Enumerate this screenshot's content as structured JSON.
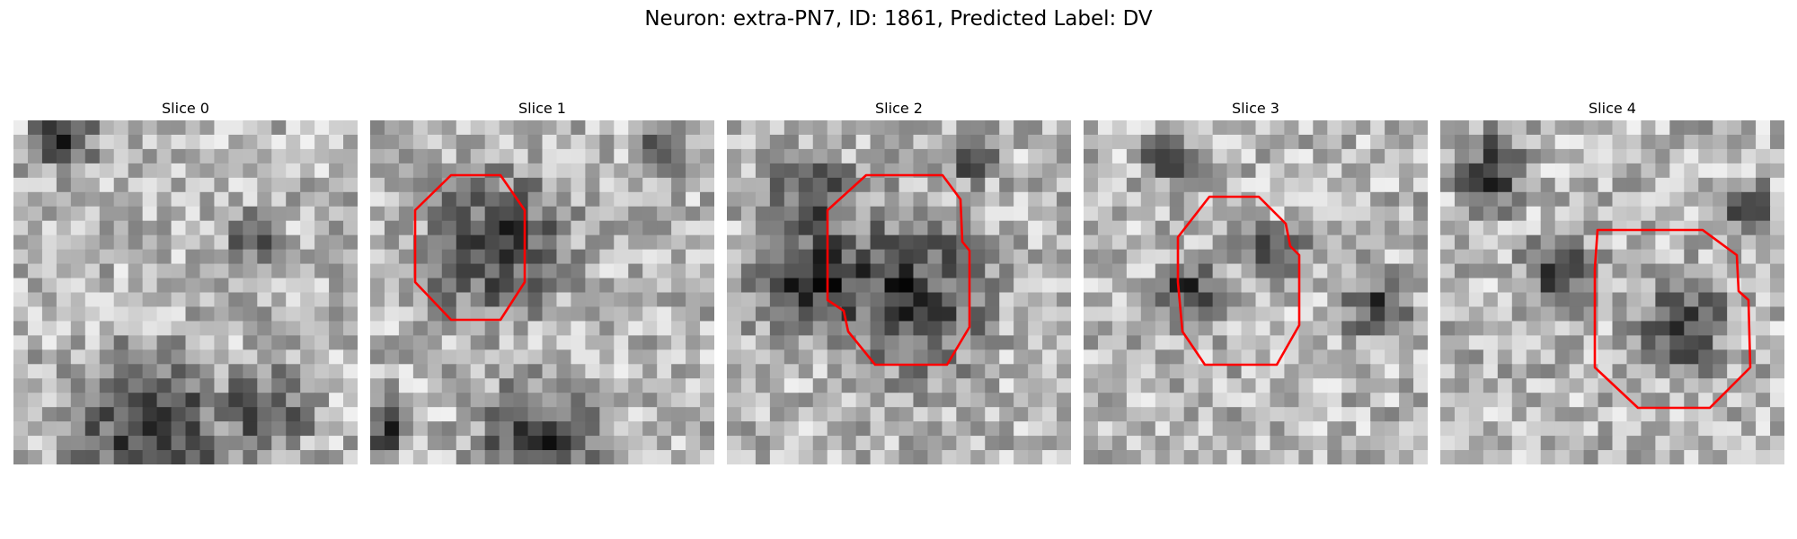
{
  "figure": {
    "title": "Neuron: extra-PN7, ID: 1861, Predicted Label: DV",
    "contour_color": "#ff0000"
  },
  "panels": [
    {
      "title": "Slice 0",
      "has_contour": false,
      "dark_blobs": [
        [
          0.15,
          0.05,
          0.1
        ],
        [
          0.7,
          0.35,
          0.08
        ],
        [
          0.4,
          0.9,
          0.25
        ],
        [
          0.75,
          0.85,
          0.12
        ]
      ]
    },
    {
      "title": "Slice 1",
      "has_contour": true,
      "dark_blobs": [
        [
          0.37,
          0.37,
          0.22
        ],
        [
          0.5,
          0.95,
          0.2
        ],
        [
          0.85,
          0.1,
          0.07
        ],
        [
          0.05,
          0.9,
          0.08
        ]
      ]
    },
    {
      "title": "Slice 2",
      "has_contour": true,
      "dark_blobs": [
        [
          0.52,
          0.5,
          0.26
        ],
        [
          0.2,
          0.45,
          0.18
        ],
        [
          0.25,
          0.2,
          0.12
        ],
        [
          0.7,
          0.1,
          0.08
        ]
      ]
    },
    {
      "title": "Slice 3",
      "has_contour": true,
      "dark_blobs": [
        [
          0.3,
          0.5,
          0.1
        ],
        [
          0.55,
          0.4,
          0.1
        ],
        [
          0.85,
          0.55,
          0.1
        ],
        [
          0.25,
          0.1,
          0.08
        ]
      ]
    },
    {
      "title": "Slice 4",
      "has_contour": true,
      "dark_blobs": [
        [
          0.15,
          0.15,
          0.12
        ],
        [
          0.35,
          0.45,
          0.12
        ],
        [
          0.7,
          0.6,
          0.14
        ],
        [
          0.9,
          0.25,
          0.08
        ]
      ]
    }
  ]
}
